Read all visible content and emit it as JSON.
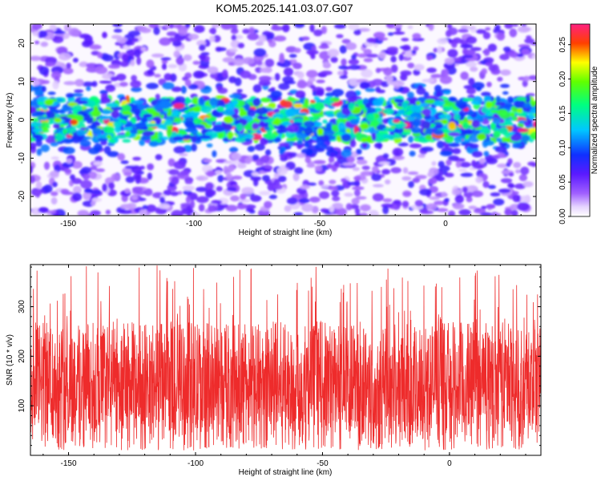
{
  "title": "KOM5.2025.141.03.07.G07",
  "chart_data": [
    {
      "type": "heatmap",
      "xlabel": "Height of straight line (km)",
      "ylabel": "Frequency (Hz)",
      "xlim": [
        -165,
        36
      ],
      "ylim": [
        -25,
        25
      ],
      "xticks": [
        -150,
        -100,
        -50,
        0
      ],
      "yticks": [
        -20,
        -10,
        0,
        10,
        20
      ],
      "colorbar": {
        "label": "Normalized spectral amplitude",
        "range": [
          0,
          0.28
        ],
        "ticks": [
          "0.00",
          "0.05",
          "0.10",
          "0.15",
          "0.20",
          "0.25"
        ],
        "colormap": "rainbow: white/lavender → violet → blue → cyan → green → yellow → red → magenta"
      },
      "band": {
        "center_hz": 0,
        "half_width_hz": 5,
        "note": "high-amplitude band around 0 Hz across full height range"
      }
    },
    {
      "type": "line",
      "xlabel": "Height of straight line (km)",
      "ylabel": "SNR (10 * v/v)",
      "xlim": [
        -165,
        36
      ],
      "ylim": [
        0,
        385
      ],
      "xticks": [
        -150,
        -100,
        -50,
        0
      ],
      "yticks": [
        100,
        200,
        300
      ],
      "color": "#ee2b2b",
      "series_summary": {
        "typical_min": 10,
        "typical_max": 270,
        "mean": 130,
        "peak": 385
      }
    }
  ]
}
